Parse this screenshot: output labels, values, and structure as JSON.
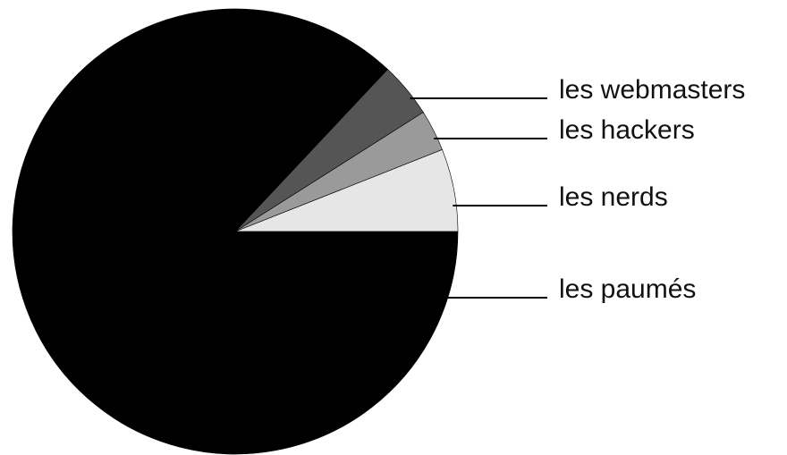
{
  "chart_data": {
    "type": "pie",
    "categories": [
      "les nerds",
      "les hackers",
      "les webmasters",
      "les paumés"
    ],
    "values": [
      6,
      3,
      4,
      87
    ],
    "colors": [
      "#e6e6e6",
      "#9a9a9a",
      "#555555",
      "#000000"
    ],
    "start_angle": 0,
    "direction": "counterclockwise"
  }
}
